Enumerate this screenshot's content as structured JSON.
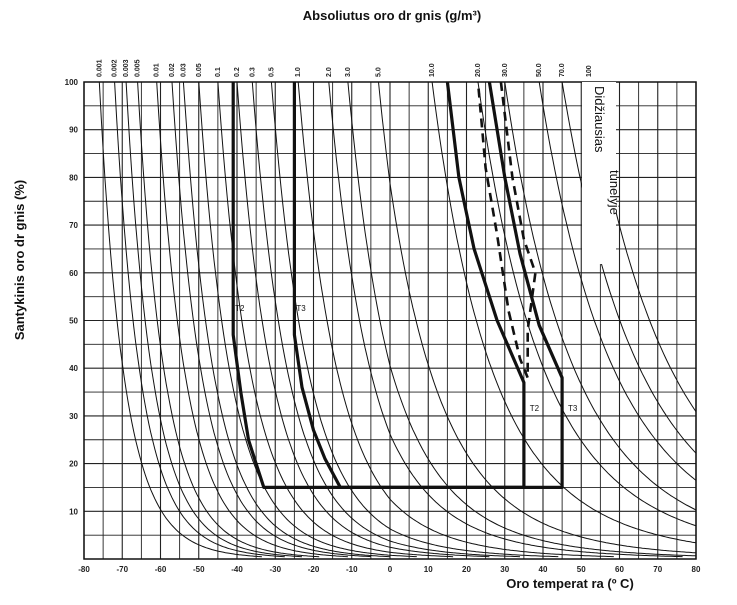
{
  "chart_data": {
    "type": "line",
    "title": "Absoliutus oro dr  gnis (g/m³)",
    "xlabel": "Oro temperat  ra (º C)",
    "ylabel": "Santykinis oro dr  gnis (%)",
    "xlim": [
      -80,
      80
    ],
    "ylim": [
      0,
      100
    ],
    "x_ticks": [
      "-80",
      "-70",
      "-60",
      "-50",
      "-40",
      "-30",
      "-20",
      "-10",
      "0",
      "10",
      "20",
      "30",
      "40",
      "50",
      "60",
      "70",
      "80"
    ],
    "y_ticks": [
      "10",
      "20",
      "30",
      "40",
      "50",
      "60",
      "70",
      "80",
      "90",
      "100"
    ],
    "grid": true,
    "absolute_humidity_curves": [
      {
        "label": "0.001",
        "t100": -76
      },
      {
        "label": "0.002",
        "t100": -72
      },
      {
        "label": "0.003",
        "t100": -69
      },
      {
        "label": "0.005",
        "t100": -66
      },
      {
        "label": "0.01",
        "t100": -61
      },
      {
        "label": "0.02",
        "t100": -57
      },
      {
        "label": "0.03",
        "t100": -54
      },
      {
        "label": "0.05",
        "t100": -50
      },
      {
        "label": "0.1",
        "t100": -45
      },
      {
        "label": "0.2",
        "t100": -40
      },
      {
        "label": "0.3",
        "t100": -36
      },
      {
        "label": "0.5",
        "t100": -31
      },
      {
        "label": "1.0",
        "t100": -24
      },
      {
        "label": "2.0",
        "t100": -16
      },
      {
        "label": "3.0",
        "t100": -11
      },
      {
        "label": "5.0",
        "t100": -3
      },
      {
        "label": "10.0",
        "t100": 11
      },
      {
        "label": "20.0",
        "t100": 23
      },
      {
        "label": "30.0",
        "t100": 30
      },
      {
        "label": "50.0",
        "t100": 39
      },
      {
        "label": "70.0",
        "t100": 45
      },
      {
        "label": "100",
        "t100": 52
      }
    ],
    "series": [
      {
        "name": "T2",
        "style": "solid",
        "points": [
          [
            -41,
            100
          ],
          [
            -41,
            47
          ],
          [
            -39,
            35
          ],
          [
            -37,
            25
          ],
          [
            -35,
            20
          ],
          [
            -33,
            15
          ],
          [
            35,
            15
          ],
          [
            35,
            37
          ],
          [
            28,
            50
          ],
          [
            22,
            65
          ],
          [
            18,
            80
          ],
          [
            15,
            100
          ]
        ]
      },
      {
        "name": "T3",
        "style": "solid",
        "points": [
          [
            -25,
            100
          ],
          [
            -25,
            47
          ],
          [
            -23,
            36
          ],
          [
            -20,
            27
          ],
          [
            -17,
            21
          ],
          [
            -13,
            15
          ],
          [
            45,
            15
          ],
          [
            45,
            38
          ],
          [
            39,
            49
          ],
          [
            34,
            64
          ],
          [
            30,
            80
          ],
          [
            26,
            100
          ]
        ]
      },
      {
        "name": "Didžiausias tunelyje",
        "style": "dashed",
        "points": [
          [
            29,
            100
          ],
          [
            32,
            80
          ],
          [
            35,
            67
          ],
          [
            38,
            60
          ],
          [
            36,
            48
          ],
          [
            36,
            38
          ],
          [
            34,
            42
          ],
          [
            31,
            52
          ],
          [
            28,
            68
          ],
          [
            25,
            82
          ],
          [
            23,
            100
          ]
        ]
      }
    ],
    "curve_labels": [
      {
        "text": "T2",
        "x": -41,
        "y": 52
      },
      {
        "text": "T3",
        "x": -25,
        "y": 52
      },
      {
        "text": "T2",
        "x": 36,
        "y": 31
      },
      {
        "text": "T3",
        "x": 46,
        "y": 31
      }
    ],
    "annotations": [
      "Didžiausias",
      "tunelyje"
    ]
  }
}
